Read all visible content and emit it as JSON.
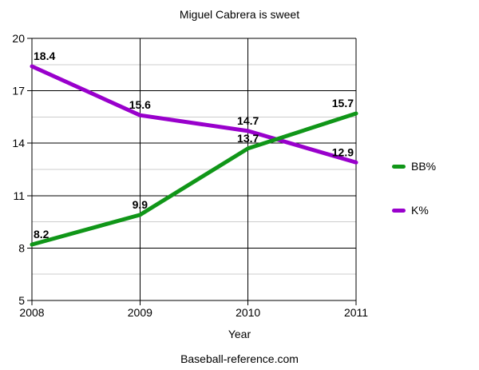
{
  "chart_data": {
    "type": "line",
    "title": "Miguel Cabrera is sweet",
    "xlabel": "Year",
    "source": "Baseball-reference.com",
    "categories": [
      "2008",
      "2009",
      "2010",
      "2011"
    ],
    "series": [
      {
        "name": "BB%",
        "color": "#109618",
        "values": [
          8.2,
          9.9,
          13.7,
          15.7
        ]
      },
      {
        "name": "K%",
        "color": "#9900cc",
        "values": [
          18.4,
          15.6,
          14.7,
          12.9
        ]
      }
    ],
    "ylim": [
      5,
      20
    ],
    "yticks": [
      5,
      8,
      11,
      14,
      17,
      20
    ],
    "minor_yticks": [
      6.5,
      9.5,
      12.5,
      15.5,
      18.5
    ],
    "grid": true,
    "data_labels": true,
    "legend_position": "right",
    "colors": {
      "major_grid": "#000000",
      "minor_grid": "#cccccc",
      "axis": "#000000",
      "text": "#000000"
    }
  }
}
